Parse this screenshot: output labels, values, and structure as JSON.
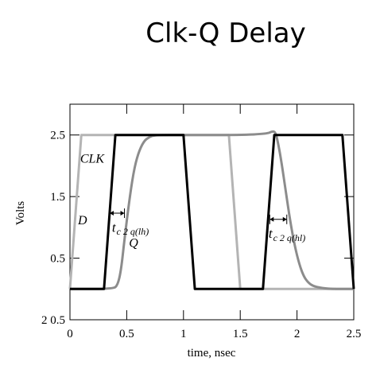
{
  "title": "Clk-Q Delay",
  "chart_data": {
    "type": "line",
    "xlabel": "time, nsec",
    "ylabel": "Volts",
    "xlim": [
      0,
      2.5
    ],
    "ylim": [
      -0.5,
      3.0
    ],
    "x_ticks": [
      {
        "value": 0,
        "label": "0"
      },
      {
        "value": 0.5,
        "label": "0.5"
      },
      {
        "value": 1,
        "label": "1"
      },
      {
        "value": 1.5,
        "label": "1.5"
      },
      {
        "value": 2,
        "label": "2"
      },
      {
        "value": 2.5,
        "label": "2.5"
      }
    ],
    "y_ticks": [
      {
        "value": 2.5,
        "label": "2.5"
      },
      {
        "value": 1.5,
        "label": "1.5"
      },
      {
        "value": 0.5,
        "label": "0.5"
      },
      {
        "value": -0.5,
        "label": "2 0.5"
      }
    ],
    "series": [
      {
        "name": "CLK",
        "color": "#000000",
        "x": [
          0,
          0.3,
          0.4,
          1.0,
          1.1,
          1.7,
          1.8,
          2.4,
          2.5
        ],
        "y": [
          0,
          0,
          2.5,
          2.5,
          0,
          0,
          2.5,
          2.5,
          0
        ]
      },
      {
        "name": "D",
        "color": "#b4b4b4",
        "x": [
          0,
          0.1,
          1.4,
          1.5,
          2.5
        ],
        "y": [
          0,
          2.5,
          2.5,
          0,
          0
        ]
      },
      {
        "name": "Q",
        "color": "#8c8c8c",
        "x": [
          0,
          0.38,
          0.42,
          0.45,
          0.48,
          0.52,
          0.56,
          0.6,
          0.65,
          0.7,
          0.75,
          1.0,
          1.5,
          1.74,
          1.78,
          1.81,
          1.83,
          1.86,
          1.9,
          1.94,
          1.98,
          2.02,
          2.06,
          2.1,
          2.14,
          2.2,
          2.3,
          2.5
        ],
        "y": [
          0,
          0,
          0.06,
          0.3,
          0.8,
          1.4,
          1.9,
          2.2,
          2.4,
          2.47,
          2.5,
          2.5,
          2.5,
          2.52,
          2.56,
          2.55,
          2.4,
          2.1,
          1.6,
          1.1,
          0.7,
          0.4,
          0.2,
          0.1,
          0.05,
          0.02,
          0,
          0
        ]
      }
    ],
    "annotations": [
      {
        "text": "CLK",
        "x": 0.09,
        "y": 2.05
      },
      {
        "text": "D",
        "x": 0.07,
        "y": 1.05
      },
      {
        "text": "Q",
        "x": 0.52,
        "y": 0.68
      },
      {
        "text": "t",
        "x": 0.37,
        "y": 0.93
      },
      {
        "text": "c 2  q(lh)",
        "x": 0.41,
        "y": 0.88
      },
      {
        "text": "t",
        "x": 1.75,
        "y": 0.83
      },
      {
        "text": "c 2  q(hl)",
        "x": 1.79,
        "y": 0.78
      }
    ],
    "delay_markers": [
      {
        "x1": 0.35,
        "x2": 0.48,
        "y": 1.23
      },
      {
        "x1": 1.76,
        "x2": 1.91,
        "y": 1.13
      }
    ]
  }
}
